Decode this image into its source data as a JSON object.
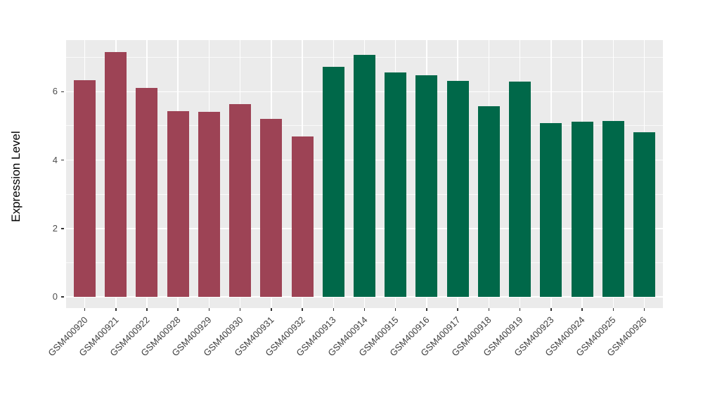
{
  "figure": {
    "background": "#FFFFFF",
    "panel_background": "#EBEBEB",
    "gridline_color": "#FFFFFF",
    "axis_text_color": "#4D4D4D",
    "tick_mark_color": "#333333"
  },
  "chart_data": {
    "type": "bar",
    "title": "",
    "xlabel": "",
    "ylabel": "Expression Level",
    "legend": "none",
    "categories": [
      "GSM400920",
      "GSM400921",
      "GSM400922",
      "GSM400928",
      "GSM400929",
      "GSM400930",
      "GSM400931",
      "GSM400932",
      "GSM400913",
      "GSM400914",
      "GSM400915",
      "GSM400916",
      "GSM400917",
      "GSM400918",
      "GSM400919",
      "GSM400923",
      "GSM400924",
      "GSM400925",
      "GSM400926"
    ],
    "values": [
      6.33,
      7.16,
      6.12,
      5.44,
      5.42,
      5.64,
      5.21,
      4.7,
      6.72,
      7.07,
      6.57,
      6.48,
      6.32,
      5.58,
      6.3,
      5.08,
      5.12,
      5.14,
      4.81
    ],
    "bar_color_groups": [
      "maroon",
      "maroon",
      "maroon",
      "maroon",
      "maroon",
      "maroon",
      "maroon",
      "maroon",
      "green",
      "green",
      "green",
      "green",
      "green",
      "green",
      "green",
      "green",
      "green",
      "green",
      "green"
    ],
    "colors": {
      "maroon": "#9D4355",
      "green": "#006849"
    },
    "y_axis": {
      "ticks": [
        0,
        2,
        4,
        6
      ],
      "minor_gridlines": [
        1,
        3,
        5,
        7
      ],
      "range": [
        -0.33,
        7.51
      ],
      "grid": true
    },
    "x_tick_angle": 45
  }
}
